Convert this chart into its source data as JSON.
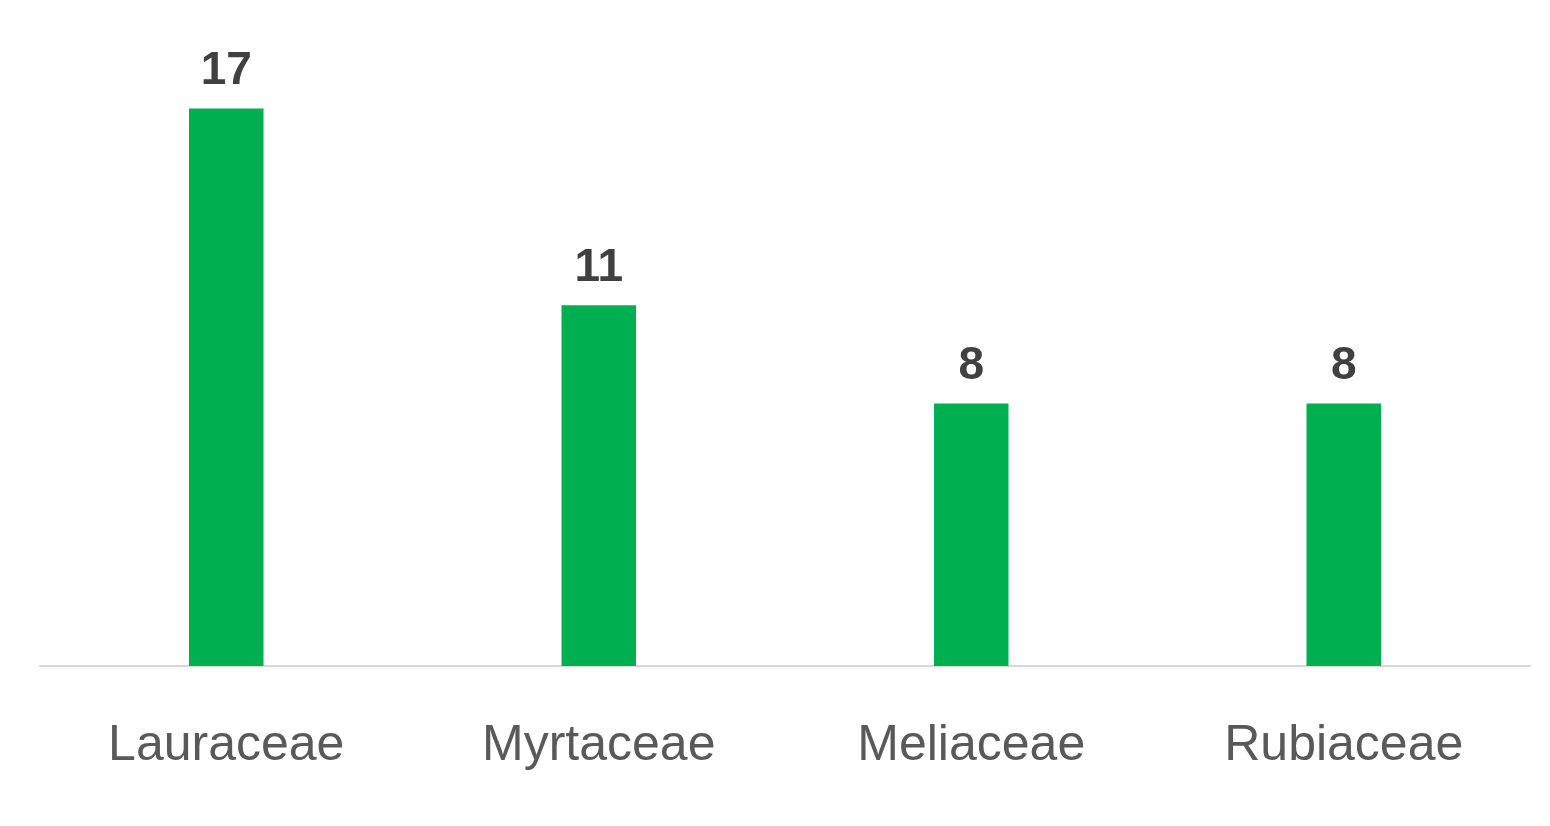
{
  "chart_data": {
    "type": "bar",
    "categories": [
      "Lauraceae",
      "Myrtaceae",
      "Meliaceae",
      "Rubiaceae"
    ],
    "values": [
      17,
      11,
      8,
      8
    ],
    "color": "#00b050",
    "data_labels": true,
    "grid": false,
    "legend": false
  }
}
